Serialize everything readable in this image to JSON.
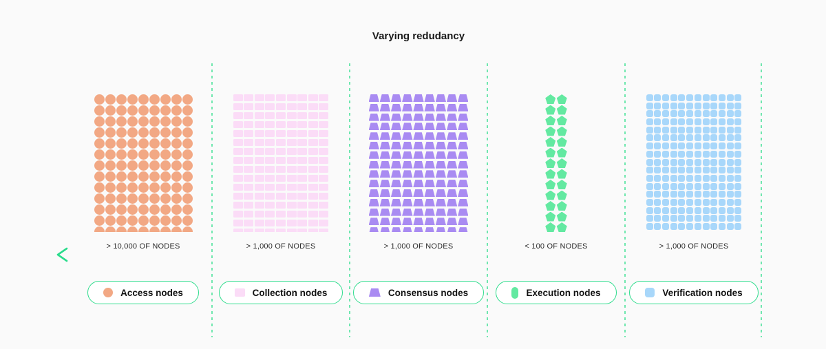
{
  "title": "Varying redudancy",
  "colors": {
    "background": "#fafafa",
    "accent_green": "#2edc8c",
    "arrow_gradient_start": "#29dc8b",
    "arrow_gradient_end": "#0d9f5e",
    "dashed_separator": "#6fe7ae",
    "title_text": "#1a1a1a",
    "count_label_text": "#2a2a2a"
  },
  "arrow": {
    "direction": "left"
  },
  "groups": [
    {
      "id": "access",
      "shape": "circle",
      "icon": "circle-icon",
      "legend_icon": "circle",
      "color": "#f2a884",
      "columns": 9,
      "rows": 13,
      "count_label": "> 10,000 OF NODES",
      "legend_label": "Access nodes"
    },
    {
      "id": "collection",
      "shape": "rect",
      "icon": "square-icon",
      "legend_icon": "rect",
      "color": "#fbdcf7",
      "columns": 9,
      "rows": 16,
      "count_label": "> 1,000 OF NODES",
      "legend_label": "Collection nodes"
    },
    {
      "id": "consensus",
      "shape": "trapezoid",
      "icon": "trapezoid-icon",
      "legend_icon": "trapezoid",
      "color": "#a98bf2",
      "columns": 9,
      "rows": 15,
      "count_label": "> 1,000 OF NODES",
      "legend_label": "Consensus nodes"
    },
    {
      "id": "execution",
      "shape": "pentagon",
      "icon": "pentagon-icon",
      "legend_icon": "capsule",
      "color": "#63e9a1",
      "columns": 2,
      "rows": 13,
      "count_label": "< 100 OF NODES",
      "legend_label": "Execution nodes"
    },
    {
      "id": "verification",
      "shape": "rounded-square",
      "icon": "rounded-square-icon",
      "legend_icon": "rounded-square",
      "color": "#a8d7fa",
      "columns": 12,
      "rows": 17,
      "count_label": "> 1,000 OF NODES",
      "legend_label": "Verification nodes"
    }
  ],
  "separator_positions": [
    307,
    507,
    707,
    907,
    1105
  ]
}
